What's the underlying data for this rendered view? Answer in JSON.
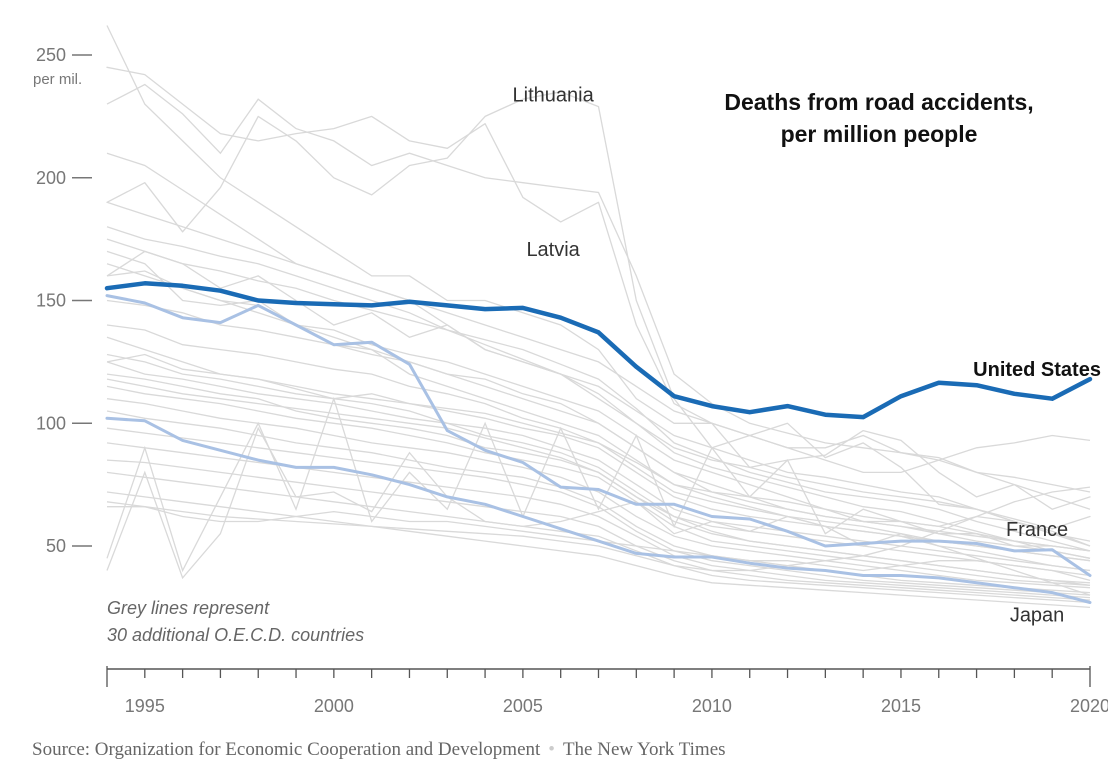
{
  "chart_data": {
    "type": "line",
    "title": [
      "Deaths from road accidents,",
      "per million people"
    ],
    "y_unit_label": "per mil.",
    "ylim": [
      0,
      260
    ],
    "xlim": [
      1994,
      2020
    ],
    "y_ticks": [
      50,
      100,
      150,
      200,
      250
    ],
    "x_ticks": [
      1995,
      2000,
      2005,
      2010,
      2015,
      2020
    ],
    "grid": false,
    "note": [
      "Grey lines represent",
      "30 additional O.E.C.D. countries"
    ],
    "years": [
      1994,
      1995,
      1996,
      1997,
      1998,
      1999,
      2000,
      2001,
      2002,
      2003,
      2004,
      2005,
      2006,
      2007,
      2008,
      2009,
      2010,
      2011,
      2012,
      2013,
      2014,
      2015,
      2016,
      2017,
      2018,
      2019,
      2020
    ],
    "series": [
      {
        "name": "United States",
        "color": "#1a6bb5",
        "highlight": true,
        "values": [
          155,
          157,
          156,
          154,
          150,
          149,
          148.5,
          148,
          149.5,
          148,
          146.5,
          147,
          143,
          137,
          123,
          111,
          107,
          104.5,
          107,
          103.5,
          102.5,
          111,
          116.5,
          115.5,
          112,
          110,
          118
        ]
      },
      {
        "name": "France",
        "color": "#a9c1e4",
        "values": [
          152,
          149,
          143,
          141,
          148,
          140,
          132,
          133,
          124,
          97,
          89,
          84,
          74,
          73,
          67,
          67,
          62,
          61,
          56,
          50,
          51,
          52,
          52,
          51,
          48,
          48.5,
          38
        ]
      },
      {
        "name": "Japan",
        "color": "#a9c1e4",
        "values": [
          102,
          101,
          93,
          89,
          85,
          82,
          82,
          79,
          75,
          70,
          67,
          62,
          57,
          52,
          47,
          45.5,
          45.5,
          43,
          41,
          40,
          38,
          38,
          37,
          35,
          33,
          31,
          27
        ]
      },
      {
        "name": "Lithuania",
        "color": "#d9d9d9",
        "values": [
          190,
          198,
          178,
          196,
          225,
          215,
          200,
          193,
          205,
          208,
          225,
          232,
          235,
          229,
          150,
          110,
          90,
          95,
          100,
          86,
          92,
          82,
          67,
          65,
          61,
          57,
          62
        ]
      },
      {
        "name": "Latvia",
        "color": "#d9d9d9",
        "values": [
          245,
          242,
          230,
          218,
          215,
          218,
          220,
          225,
          215,
          212,
          222,
          192,
          182,
          190,
          140,
          108,
          100,
          82,
          85,
          87,
          97,
          93,
          80,
          70,
          75,
          65,
          70
        ]
      }
    ],
    "grey_series": [
      [
        262,
        230,
        215,
        200,
        190,
        180,
        170,
        160,
        160,
        150,
        150,
        145,
        140,
        130,
        110,
        100,
        100,
        95,
        90,
        90,
        95,
        88,
        85,
        80,
        78,
        75,
        72
      ],
      [
        170,
        165,
        150,
        148,
        150,
        140,
        132,
        130,
        120,
        115,
        110,
        105,
        100,
        95,
        85,
        75,
        72,
        70,
        68,
        65,
        60,
        60,
        55,
        55,
        50,
        50,
        48
      ],
      [
        165,
        160,
        155,
        150,
        145,
        140,
        135,
        130,
        125,
        120,
        115,
        110,
        105,
        100,
        90,
        80,
        75,
        70,
        65,
        62,
        60,
        58,
        55,
        52,
        50,
        48,
        45
      ],
      [
        160,
        162,
        155,
        150,
        148,
        140,
        138,
        132,
        128,
        125,
        120,
        115,
        110,
        105,
        95,
        85,
        80,
        75,
        70,
        65,
        62,
        60,
        58,
        55,
        52,
        50,
        48
      ],
      [
        150,
        148,
        145,
        140,
        138,
        135,
        132,
        128,
        125,
        120,
        118,
        112,
        108,
        100,
        90,
        80,
        72,
        68,
        65,
        62,
        60,
        58,
        56,
        54,
        52,
        50,
        48
      ],
      [
        140,
        138,
        132,
        130,
        128,
        125,
        122,
        120,
        115,
        112,
        108,
        102,
        98,
        92,
        82,
        72,
        68,
        65,
        62,
        60,
        58,
        55,
        52,
        50,
        48,
        46,
        44
      ],
      [
        135,
        130,
        125,
        120,
        118,
        115,
        112,
        110,
        108,
        105,
        102,
        98,
        95,
        90,
        80,
        70,
        65,
        62,
        60,
        58,
        56,
        54,
        52,
        50,
        48,
        46,
        44
      ],
      [
        128,
        125,
        120,
        118,
        115,
        112,
        110,
        108,
        105,
        100,
        98,
        95,
        90,
        85,
        75,
        65,
        60,
        58,
        56,
        54,
        52,
        50,
        48,
        46,
        44,
        42,
        40
      ],
      [
        125,
        120,
        118,
        115,
        112,
        110,
        108,
        105,
        102,
        100,
        95,
        92,
        88,
        82,
        72,
        62,
        58,
        56,
        54,
        52,
        50,
        48,
        46,
        44,
        42,
        40,
        38
      ],
      [
        120,
        118,
        115,
        112,
        110,
        105,
        102,
        100,
        98,
        95,
        90,
        88,
        85,
        80,
        70,
        60,
        55,
        52,
        50,
        48,
        46,
        44,
        42,
        40,
        38,
        36,
        35
      ],
      [
        115,
        112,
        110,
        108,
        105,
        102,
        100,
        98,
        95,
        92,
        88,
        85,
        82,
        78,
        68,
        58,
        52,
        50,
        48,
        46,
        44,
        42,
        40,
        38,
        36,
        35,
        34
      ],
      [
        110,
        108,
        105,
        102,
        100,
        98,
        95,
        92,
        90,
        88,
        85,
        82,
        78,
        72,
        62,
        54,
        50,
        48,
        46,
        44,
        42,
        40,
        38,
        36,
        35,
        34,
        33
      ],
      [
        105,
        102,
        100,
        98,
        95,
        92,
        90,
        88,
        85,
        82,
        80,
        78,
        74,
        68,
        58,
        50,
        46,
        44,
        42,
        40,
        38,
        36,
        35,
        34,
        33,
        32,
        31
      ],
      [
        98,
        96,
        94,
        92,
        90,
        88,
        86,
        84,
        82,
        80,
        78,
        75,
        72,
        66,
        56,
        48,
        44,
        42,
        40,
        38,
        36,
        35,
        34,
        33,
        32,
        31,
        30
      ],
      [
        92,
        90,
        88,
        86,
        84,
        82,
        80,
        78,
        76,
        74,
        72,
        70,
        67,
        62,
        54,
        46,
        42,
        40,
        38,
        36,
        35,
        34,
        33,
        32,
        31,
        30,
        29
      ],
      [
        85,
        84,
        82,
        80,
        78,
        76,
        74,
        72,
        70,
        68,
        66,
        64,
        62,
        58,
        50,
        44,
        40,
        38,
        36,
        35,
        34,
        33,
        32,
        31,
        30,
        29,
        28
      ],
      [
        80,
        78,
        76,
        74,
        72,
        70,
        68,
        66,
        64,
        62,
        60,
        58,
        56,
        54,
        48,
        42,
        38,
        36,
        35,
        34,
        33,
        32,
        31,
        30,
        29,
        28,
        27
      ],
      [
        72,
        70,
        68,
        66,
        64,
        62,
        60,
        58,
        56,
        54,
        52,
        50,
        48,
        46,
        42,
        38,
        35,
        34,
        33,
        32,
        31,
        30,
        29,
        28,
        27,
        26,
        25
      ],
      [
        68,
        66,
        64,
        62,
        61,
        60,
        59,
        58,
        57,
        56,
        55,
        54,
        52,
        50,
        46,
        42,
        40,
        40,
        42,
        44,
        46,
        50,
        56,
        62,
        68,
        72,
        74
      ],
      [
        66,
        66,
        62,
        60,
        60,
        62,
        64,
        62,
        60,
        60,
        58,
        56,
        54,
        52,
        50,
        48,
        46,
        44,
        44,
        42,
        40,
        42,
        44,
        44,
        42,
        40,
        36
      ],
      [
        45,
        90,
        40,
        70,
        100,
        65,
        110,
        60,
        80,
        65,
        100,
        62,
        98,
        65,
        95,
        58,
        90,
        70,
        85,
        55,
        65,
        60,
        58,
        62,
        60,
        56,
        50
      ],
      [
        40,
        80,
        37,
        55,
        98,
        70,
        72,
        64,
        88,
        70,
        60,
        58,
        60,
        64,
        68,
        55,
        60,
        56,
        62,
        58,
        50,
        55,
        50,
        45,
        40,
        35,
        30
      ],
      [
        230,
        238,
        226,
        210,
        232,
        220,
        215,
        205,
        210,
        205,
        200,
        198,
        196,
        194,
        160,
        120,
        108,
        100,
        96,
        92,
        90,
        88,
        86,
        80,
        75,
        70,
        65
      ],
      [
        210,
        205,
        195,
        185,
        175,
        165,
        160,
        155,
        150,
        145,
        140,
        135,
        130,
        125,
        115,
        105,
        100,
        95,
        90,
        85,
        80,
        80,
        85,
        90,
        92,
        95,
        93
      ],
      [
        190,
        185,
        180,
        175,
        170,
        165,
        160,
        155,
        150,
        140,
        130,
        125,
        120,
        110,
        100,
        90,
        85,
        82,
        78,
        75,
        72,
        70,
        68,
        65,
        60,
        55,
        50
      ],
      [
        180,
        175,
        172,
        168,
        165,
        160,
        155,
        150,
        145,
        138,
        132,
        126,
        120,
        112,
        100,
        88,
        82,
        78,
        74,
        70,
        66,
        64,
        60,
        56,
        52,
        48,
        45
      ],
      [
        175,
        170,
        165,
        162,
        158,
        155,
        150,
        146,
        142,
        138,
        134,
        130,
        124,
        118,
        106,
        92,
        86,
        80,
        76,
        72,
        70,
        68,
        65,
        60,
        56,
        52,
        48
      ],
      [
        160,
        170,
        165,
        155,
        160,
        150,
        140,
        145,
        135,
        140,
        130,
        125,
        120,
        115,
        105,
        95,
        90,
        85,
        80,
        78,
        75,
        72,
        70,
        65,
        60,
        55,
        52
      ],
      [
        125,
        128,
        122,
        120,
        118,
        114,
        110,
        112,
        108,
        106,
        104,
        100,
        96,
        92,
        84,
        75,
        70,
        66,
        62,
        58,
        56,
        54,
        50,
        48,
        45,
        42,
        40
      ],
      [
        118,
        115,
        112,
        110,
        108,
        106,
        104,
        102,
        100,
        98,
        94,
        90,
        86,
        80,
        70,
        62,
        56,
        52,
        50,
        48,
        46,
        44,
        42,
        40,
        38,
        36,
        34
      ]
    ],
    "annotations": [
      {
        "text": "Lithuania",
        "year": 2005.8,
        "value": 234
      },
      {
        "text": "Latvia",
        "year": 2005.8,
        "value": 171
      },
      {
        "text": "United States",
        "year": 2018.6,
        "value": 122,
        "bold": true
      },
      {
        "text": "France",
        "year": 2018.6,
        "value": 57
      },
      {
        "text": "Japan",
        "year": 2018.6,
        "value": 22
      }
    ]
  },
  "source": {
    "label": "Source: Organization for Economic Cooperation and Development",
    "separator": "•",
    "publisher": "The New York Times"
  }
}
